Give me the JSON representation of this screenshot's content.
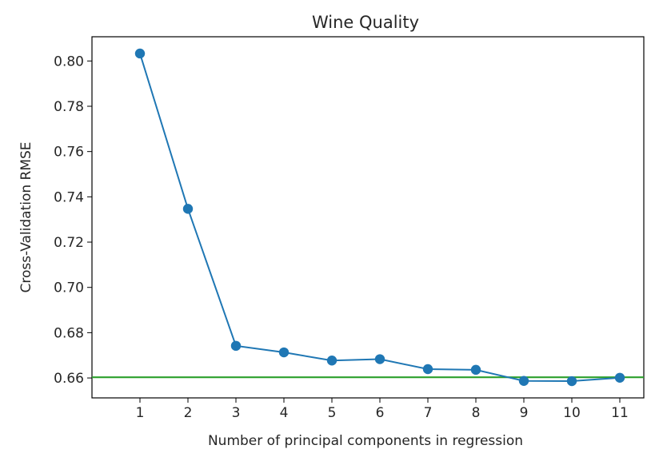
{
  "chart_data": {
    "type": "line",
    "title": "Wine Quality",
    "xlabel": "Number of principal components in regression",
    "ylabel": "Cross-Validation RMSE",
    "x": [
      1,
      2,
      3,
      4,
      5,
      6,
      7,
      8,
      9,
      10,
      11
    ],
    "xlim": [
      0,
      11.5
    ],
    "ylim": [
      0.6512,
      0.8107
    ],
    "yticks": [
      0.66,
      0.68,
      0.7,
      0.72,
      0.74,
      0.76,
      0.78,
      0.8
    ],
    "ytick_labels": [
      "0.66",
      "0.68",
      "0.70",
      "0.72",
      "0.74",
      "0.76",
      "0.78",
      "0.80"
    ],
    "xtick_labels": [
      "1",
      "2",
      "3",
      "4",
      "5",
      "6",
      "7",
      "8",
      "9",
      "10",
      "11"
    ],
    "series": [
      {
        "values": [
          0.8033,
          0.7347,
          0.6742,
          0.6713,
          0.6677,
          0.6683,
          0.6639,
          0.6636,
          0.6587,
          0.6586,
          0.6601
        ],
        "color": "#1f77b4",
        "marker": "circle"
      }
    ],
    "reference_line": {
      "y": 0.6603,
      "color": "#2ca02c",
      "orientation": "horizontal"
    },
    "grid": false,
    "legend": "none"
  }
}
